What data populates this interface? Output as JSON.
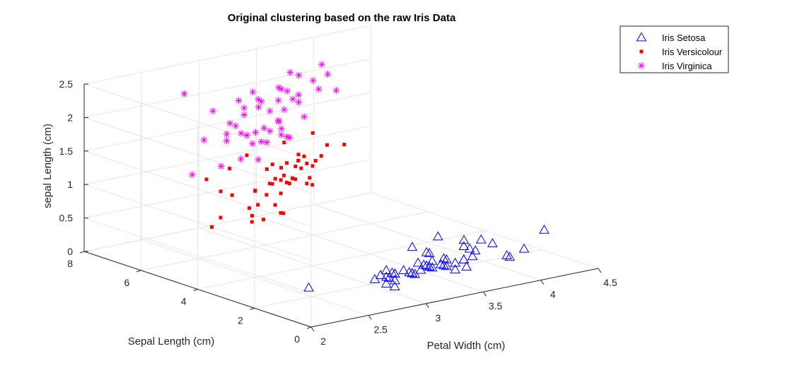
{
  "chart_data": {
    "type": "scatter3d",
    "title": "Original clustering based on the raw Iris Data",
    "xlabel": "Petal Width (cm)",
    "ylabel": "Sepal Length (cm)",
    "zlabel": "sepal Length (cm)",
    "xlim": [
      2,
      4.5
    ],
    "ylim": [
      0,
      8
    ],
    "zlim": [
      0,
      2.5
    ],
    "xticks": [
      "2",
      "2.5",
      "3",
      "3.5",
      "4",
      "4.5"
    ],
    "yticks": [
      "0",
      "2",
      "4",
      "6",
      "8"
    ],
    "zticks": [
      "0",
      "0.5",
      "1",
      "1.5",
      "2",
      "2.5"
    ],
    "grid": true,
    "legend_position": "top-right",
    "series": [
      {
        "name": "Iris Setosa",
        "marker": "triangle",
        "color": "#0000ff",
        "points": [
          [
            3.5,
            1.4,
            0.2
          ],
          [
            3.0,
            1.4,
            0.2
          ],
          [
            3.2,
            1.3,
            0.2
          ],
          [
            3.1,
            1.5,
            0.2
          ],
          [
            3.6,
            1.4,
            0.2
          ],
          [
            3.9,
            1.7,
            0.4
          ],
          [
            3.4,
            1.4,
            0.3
          ],
          [
            3.4,
            1.5,
            0.2
          ],
          [
            2.9,
            1.4,
            0.2
          ],
          [
            3.1,
            1.5,
            0.1
          ],
          [
            3.7,
            1.5,
            0.2
          ],
          [
            3.4,
            1.6,
            0.2
          ],
          [
            3.0,
            1.4,
            0.1
          ],
          [
            3.0,
            1.1,
            0.1
          ],
          [
            4.0,
            1.2,
            0.2
          ],
          [
            4.4,
            1.5,
            0.4
          ],
          [
            3.9,
            1.3,
            0.4
          ],
          [
            3.5,
            1.4,
            0.3
          ],
          [
            3.8,
            1.7,
            0.3
          ],
          [
            3.8,
            1.5,
            0.3
          ],
          [
            3.4,
            1.7,
            0.2
          ],
          [
            3.7,
            1.5,
            0.4
          ],
          [
            3.6,
            1.0,
            0.2
          ],
          [
            3.3,
            1.7,
            0.5
          ],
          [
            3.4,
            1.9,
            0.2
          ],
          [
            3.0,
            1.6,
            0.2
          ],
          [
            3.4,
            1.6,
            0.4
          ],
          [
            3.5,
            1.5,
            0.2
          ],
          [
            3.4,
            1.4,
            0.2
          ],
          [
            3.2,
            1.6,
            0.2
          ],
          [
            3.1,
            1.6,
            0.2
          ],
          [
            3.4,
            1.5,
            0.4
          ],
          [
            4.1,
            1.5,
            0.1
          ],
          [
            4.2,
            1.4,
            0.2
          ],
          [
            3.1,
            1.5,
            0.2
          ],
          [
            3.2,
            1.2,
            0.2
          ],
          [
            3.5,
            1.3,
            0.2
          ],
          [
            3.6,
            1.4,
            0.1
          ],
          [
            3.0,
            1.3,
            0.2
          ],
          [
            3.4,
            1.5,
            0.2
          ],
          [
            3.5,
            1.3,
            0.3
          ],
          [
            2.3,
            1.3,
            0.3
          ],
          [
            3.2,
            1.3,
            0.2
          ],
          [
            3.5,
            1.6,
            0.6
          ],
          [
            3.8,
            1.9,
            0.4
          ],
          [
            3.0,
            1.4,
            0.3
          ],
          [
            3.8,
            1.6,
            0.2
          ],
          [
            3.2,
            1.4,
            0.2
          ],
          [
            3.7,
            1.5,
            0.2
          ],
          [
            3.3,
            1.4,
            0.2
          ]
        ]
      },
      {
        "name": "Iris Versicolour",
        "marker": "square",
        "color": "#ff0000",
        "points": [
          [
            3.2,
            4.7,
            1.4
          ],
          [
            3.2,
            4.5,
            1.5
          ],
          [
            3.1,
            4.9,
            1.5
          ],
          [
            2.3,
            4.0,
            1.3
          ],
          [
            2.8,
            4.6,
            1.5
          ],
          [
            2.8,
            4.5,
            1.3
          ],
          [
            3.3,
            4.7,
            1.6
          ],
          [
            2.4,
            3.3,
            1.0
          ],
          [
            2.9,
            4.6,
            1.3
          ],
          [
            2.7,
            3.9,
            1.4
          ],
          [
            2.0,
            3.5,
            1.0
          ],
          [
            3.0,
            4.2,
            1.5
          ],
          [
            2.2,
            4.0,
            1.0
          ],
          [
            2.9,
            4.7,
            1.4
          ],
          [
            2.9,
            3.6,
            1.3
          ],
          [
            3.1,
            4.4,
            1.4
          ],
          [
            3.0,
            4.5,
            1.5
          ],
          [
            2.7,
            4.1,
            1.0
          ],
          [
            2.2,
            4.5,
            1.5
          ],
          [
            2.5,
            3.9,
            1.1
          ],
          [
            3.2,
            4.8,
            1.8
          ],
          [
            2.8,
            4.0,
            1.3
          ],
          [
            2.5,
            4.9,
            1.5
          ],
          [
            2.8,
            4.7,
            1.2
          ],
          [
            2.9,
            4.3,
            1.3
          ],
          [
            3.0,
            4.4,
            1.4
          ],
          [
            2.8,
            4.8,
            1.4
          ],
          [
            3.0,
            5.0,
            1.7
          ],
          [
            2.9,
            4.5,
            1.5
          ],
          [
            2.6,
            3.5,
            1.0
          ],
          [
            2.4,
            3.8,
            1.1
          ],
          [
            2.4,
            3.7,
            1.0
          ],
          [
            2.7,
            3.9,
            1.2
          ],
          [
            2.7,
            5.1,
            1.6
          ],
          [
            3.0,
            4.5,
            1.5
          ],
          [
            3.4,
            4.5,
            1.6
          ],
          [
            3.1,
            4.7,
            1.5
          ],
          [
            2.3,
            4.4,
            1.3
          ],
          [
            3.0,
            4.1,
            1.3
          ],
          [
            2.5,
            4.0,
            1.3
          ],
          [
            2.6,
            4.4,
            1.2
          ],
          [
            3.0,
            4.6,
            1.4
          ],
          [
            2.6,
            4.0,
            1.2
          ],
          [
            2.3,
            3.3,
            1.0
          ],
          [
            2.7,
            4.2,
            1.3
          ],
          [
            3.0,
            4.2,
            1.2
          ],
          [
            2.9,
            4.2,
            1.3
          ],
          [
            2.9,
            4.3,
            1.3
          ],
          [
            2.5,
            3.0,
            1.1
          ],
          [
            2.8,
            4.1,
            1.3
          ]
        ]
      },
      {
        "name": "Iris Virginica",
        "marker": "asterisk",
        "color": "#ff00ff",
        "points": [
          [
            3.3,
            6.0,
            2.5
          ],
          [
            2.7,
            5.1,
            1.9
          ],
          [
            3.0,
            5.9,
            2.1
          ],
          [
            2.9,
            5.6,
            1.8
          ],
          [
            3.0,
            5.8,
            2.2
          ],
          [
            3.0,
            6.6,
            2.1
          ],
          [
            2.5,
            4.5,
            1.7
          ],
          [
            2.9,
            6.3,
            1.8
          ],
          [
            2.5,
            5.8,
            1.8
          ],
          [
            3.6,
            6.1,
            2.5
          ],
          [
            3.2,
            5.1,
            2.0
          ],
          [
            2.7,
            5.3,
            1.9
          ],
          [
            3.0,
            5.5,
            2.1
          ],
          [
            2.5,
            5.0,
            2.0
          ],
          [
            2.8,
            5.1,
            2.4
          ],
          [
            3.2,
            5.3,
            2.3
          ],
          [
            3.0,
            5.5,
            1.8
          ],
          [
            3.8,
            6.7,
            2.2
          ],
          [
            2.6,
            6.9,
            2.3
          ],
          [
            2.2,
            5.0,
            1.5
          ],
          [
            3.2,
            5.7,
            2.3
          ],
          [
            2.8,
            4.9,
            2.0
          ],
          [
            2.8,
            6.7,
            2.0
          ],
          [
            2.7,
            4.9,
            1.8
          ],
          [
            3.3,
            5.7,
            2.1
          ],
          [
            3.2,
            6.0,
            1.8
          ],
          [
            2.8,
            4.8,
            1.8
          ],
          [
            3.0,
            4.9,
            1.8
          ],
          [
            2.8,
            5.6,
            2.1
          ],
          [
            3.0,
            5.8,
            1.6
          ],
          [
            2.8,
            6.1,
            1.9
          ],
          [
            3.8,
            6.4,
            2.0
          ],
          [
            2.8,
            5.6,
            2.2
          ],
          [
            2.8,
            5.1,
            1.5
          ],
          [
            2.6,
            5.6,
            1.4
          ],
          [
            3.0,
            6.1,
            2.3
          ],
          [
            3.4,
            5.6,
            2.4
          ],
          [
            3.1,
            5.5,
            1.8
          ],
          [
            3.0,
            4.8,
            1.8
          ],
          [
            3.1,
            5.4,
            2.1
          ],
          [
            3.1,
            5.6,
            2.4
          ],
          [
            3.1,
            5.1,
            2.3
          ],
          [
            2.7,
            5.1,
            1.9
          ],
          [
            3.2,
            5.9,
            2.3
          ],
          [
            3.3,
            5.7,
            2.5
          ],
          [
            3.0,
            5.2,
            2.3
          ],
          [
            2.5,
            5.0,
            1.9
          ],
          [
            3.0,
            5.2,
            2.0
          ],
          [
            3.4,
            5.4,
            2.3
          ],
          [
            3.0,
            5.1,
            1.8
          ]
        ]
      }
    ]
  }
}
